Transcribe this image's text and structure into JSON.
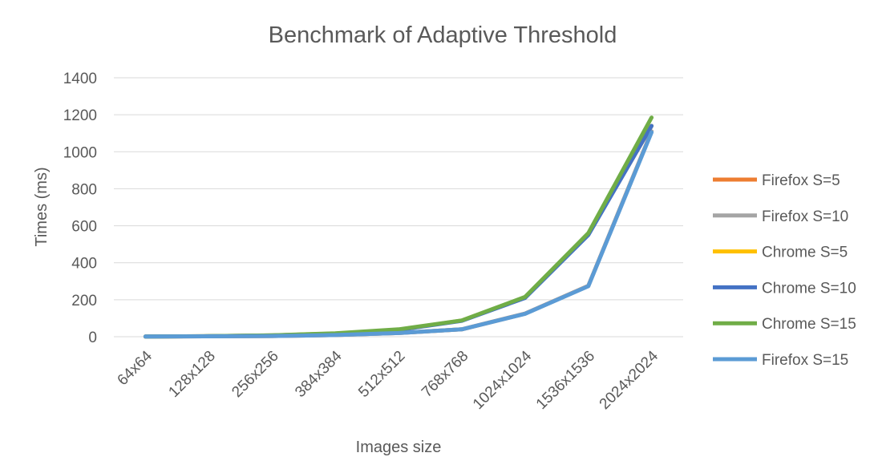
{
  "chart_data": {
    "type": "line",
    "title": "Benchmark of Adaptive Threshold",
    "xlabel": "Images size",
    "ylabel": "Times (ms)",
    "categories": [
      "64x64",
      "128x128",
      "256x256",
      "384x384",
      "512x512",
      "768x768",
      "1024x1024",
      "1536x1536",
      "2024x2024"
    ],
    "ylim": [
      0,
      1400
    ],
    "yticks": [
      "0",
      "200",
      "400",
      "600",
      "800",
      "1000",
      "1200",
      "1400"
    ],
    "grid": true,
    "legend_position": "right",
    "series": [
      {
        "name": "Firefox S=5",
        "color": "#ED7D31",
        "values": [
          1,
          2,
          4,
          9,
          20,
          40,
          125,
          275,
          1110
        ]
      },
      {
        "name": "Firefox S=10",
        "color": "#A5A5A5",
        "values": [
          1,
          2,
          4,
          9,
          20,
          40,
          125,
          275,
          1110
        ]
      },
      {
        "name": "Chrome S=5",
        "color": "#FFC000",
        "values": [
          1,
          3,
          7,
          17,
          38,
          87,
          213,
          553,
          1140
        ]
      },
      {
        "name": "Chrome S=10",
        "color": "#4472C4",
        "values": [
          1,
          3,
          7,
          17,
          37,
          86,
          210,
          550,
          1140
        ]
      },
      {
        "name": "Chrome S=15",
        "color": "#70AD47",
        "values": [
          1,
          3,
          8,
          18,
          40,
          88,
          215,
          560,
          1185
        ]
      },
      {
        "name": "Firefox S=15",
        "color": "#5B9BD5",
        "values": [
          1,
          2,
          4,
          9,
          20,
          40,
          124,
          273,
          1105
        ]
      }
    ]
  }
}
